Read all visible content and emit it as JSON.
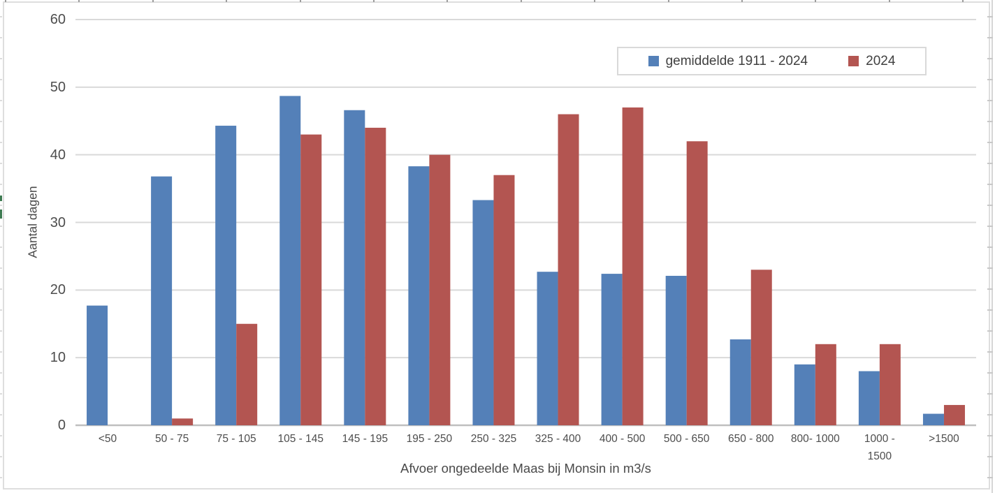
{
  "chart_data": {
    "type": "bar",
    "title": "",
    "categories": [
      "<50",
      "50 - 75",
      "75 - 105",
      "105 - 145",
      "145 - 195",
      "195 - 250",
      "250 - 325",
      "325 - 400",
      "400 - 500",
      "500 - 650",
      "650 - 800",
      "800- 1000",
      "1000 - 1500",
      ">1500"
    ],
    "series": [
      {
        "name": "gemiddelde 1911 - 2024",
        "color": "#5480b8",
        "values": [
          17.7,
          36.8,
          44.3,
          48.7,
          46.6,
          38.3,
          33.3,
          22.7,
          22.4,
          22.1,
          12.7,
          9,
          8,
          1.7
        ]
      },
      {
        "name": "2024",
        "color": "#b35551",
        "values": [
          0,
          1,
          15,
          43,
          44,
          40,
          37,
          46,
          47,
          42,
          23,
          12,
          12,
          3
        ]
      }
    ],
    "xlabel": "Afvoer ongedeelde Maas bij Monsin in m3/s",
    "ylabel": "Aantal dagen",
    "ylim": [
      0,
      60
    ],
    "yticks": [
      0,
      10,
      20,
      30,
      40,
      50,
      60
    ],
    "grid": true,
    "legend_position": "top-right",
    "colors": {
      "gridline": "#d9d9d9",
      "axis_line": "#bfbfbf",
      "chart_border": "#dedede",
      "blue": "#5480b8",
      "red": "#b35551",
      "green_cell_mark": "#3e7b52"
    }
  }
}
